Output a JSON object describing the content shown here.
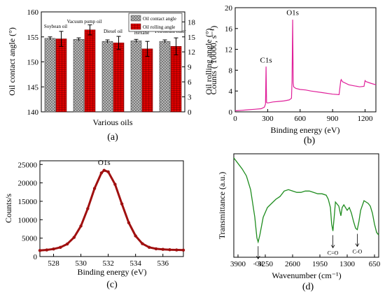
{
  "panels": {
    "a": {
      "label": "(a)"
    },
    "b": {
      "label": "(b)"
    },
    "c": {
      "label": "(c)"
    },
    "d": {
      "label": "(d)"
    }
  },
  "colors": {
    "contact": "#bfbfbf",
    "rolling": "#e00000",
    "survey": "#e0209a",
    "peak": "#a01010",
    "ftir": "#1e8c1e"
  },
  "chart_data": [
    {
      "id": "a",
      "type": "bar",
      "title": "",
      "xlabel": "Various oils",
      "ylabel": "Oil contact angle (°)",
      "y2label": "Oil rolling angle (°)",
      "ylim": [
        140,
        160
      ],
      "y2lim": [
        0,
        20
      ],
      "yticks": [
        140,
        145,
        150,
        155,
        160
      ],
      "y2ticks": [
        0,
        3,
        6,
        9,
        12,
        15,
        18
      ],
      "categories": [
        "Soybean oil",
        "Vacuum pump oil",
        "Diesel oil",
        "Hexane",
        "Petroleum ether"
      ],
      "legend": {
        "position": "top-right"
      },
      "series": [
        {
          "name": "Oil contact angle",
          "axis": "left",
          "values": [
            154.7,
            154.5,
            154.1,
            154.2,
            154.1
          ],
          "errors": [
            0.3,
            0.3,
            0.3,
            0.3,
            0.3
          ]
        },
        {
          "name": "Oil rolling angle",
          "axis": "right",
          "values": [
            14.6,
            16.4,
            13.8,
            12.6,
            13.1
          ],
          "errors": [
            1.5,
            1.0,
            1.3,
            1.5,
            1.7
          ]
        }
      ]
    },
    {
      "id": "b",
      "type": "line",
      "title": "",
      "xlabel": "Binding energy (eV)",
      "ylabel": "Counts ( 10000, s⁻¹)",
      "xlim": [
        0,
        1300
      ],
      "ylim": [
        0,
        20
      ],
      "xticks": [
        0,
        300,
        600,
        900,
        1200
      ],
      "yticks": [
        0,
        4,
        8,
        12,
        16,
        20
      ],
      "annotations": [
        {
          "text": "C1s",
          "x": 285,
          "y": 9.2
        },
        {
          "text": "O1s",
          "x": 531,
          "y": 18.3
        }
      ],
      "x": [
        0,
        60,
        120,
        180,
        240,
        270,
        280,
        285,
        290,
        300,
        350,
        400,
        450,
        500,
        520,
        525,
        531,
        536,
        540,
        560,
        600,
        650,
        700,
        800,
        900,
        960,
        975,
        980,
        990,
        1050,
        1100,
        1150,
        1190,
        1200,
        1210,
        1250,
        1300
      ],
      "y": [
        0.2,
        0.3,
        0.4,
        0.5,
        0.6,
        0.9,
        1.5,
        8.7,
        1.8,
        1.7,
        1.9,
        2.0,
        2.1,
        2.3,
        2.6,
        6.0,
        17.7,
        5.5,
        4.8,
        4.5,
        4.3,
        4.2,
        4.0,
        3.7,
        3.4,
        3.3,
        6.0,
        6.2,
        5.8,
        5.2,
        5.0,
        4.8,
        4.9,
        6.0,
        5.8,
        5.5,
        5.2
      ]
    },
    {
      "id": "c",
      "type": "scatter",
      "title": "",
      "xlabel": "Binding energy (eV)",
      "ylabel": "Counts/s",
      "xlim": [
        527,
        537.5
      ],
      "ylim": [
        0,
        26000
      ],
      "xticks": [
        528,
        530,
        532,
        534,
        536
      ],
      "yticks": [
        0,
        5000,
        10000,
        15000,
        20000,
        25000
      ],
      "annotations": [
        {
          "text": "O1s",
          "x": 531.7,
          "y": 24500
        }
      ],
      "x": [
        527.0,
        527.5,
        528.0,
        528.5,
        529.0,
        529.5,
        530.0,
        530.5,
        531.0,
        531.5,
        531.7,
        532.0,
        532.5,
        533.0,
        533.5,
        534.0,
        534.5,
        535.0,
        535.5,
        536.0,
        536.5,
        537.0,
        537.5
      ],
      "y": [
        1650,
        1800,
        2050,
        2500,
        3400,
        5200,
        8300,
        13000,
        18500,
        22700,
        23400,
        23000,
        19600,
        14300,
        9200,
        5600,
        3500,
        2500,
        2100,
        1950,
        1850,
        1800,
        1750
      ]
    },
    {
      "id": "d",
      "type": "line",
      "title": "",
      "xlabel": "Wavenumber (cm⁻¹)",
      "ylabel": "Transmittance (a.u.)",
      "xlim": [
        4000,
        550
      ],
      "xticks": [
        3900,
        3250,
        2600,
        1950,
        1300,
        650
      ],
      "yaxis_ticks": false,
      "annotations": [
        {
          "text": "-OH",
          "x": 3420
        },
        {
          "text": "C=O",
          "x": 1640
        },
        {
          "text": "C-O",
          "x": 1060
        }
      ],
      "x": [
        4000,
        3900,
        3800,
        3700,
        3600,
        3500,
        3450,
        3420,
        3380,
        3300,
        3200,
        3100,
        3000,
        2900,
        2800,
        2700,
        2600,
        2500,
        2400,
        2300,
        2200,
        2100,
        2000,
        1900,
        1800,
        1750,
        1700,
        1670,
        1640,
        1610,
        1580,
        1500,
        1450,
        1420,
        1380,
        1300,
        1250,
        1200,
        1150,
        1100,
        1060,
        1020,
        980,
        900,
        800,
        750,
        700,
        650,
        600,
        550
      ],
      "y": [
        0.98,
        0.94,
        0.9,
        0.85,
        0.75,
        0.55,
        0.4,
        0.37,
        0.42,
        0.55,
        0.62,
        0.65,
        0.68,
        0.7,
        0.74,
        0.75,
        0.74,
        0.73,
        0.73,
        0.74,
        0.74,
        0.73,
        0.72,
        0.72,
        0.71,
        0.68,
        0.62,
        0.5,
        0.45,
        0.55,
        0.66,
        0.63,
        0.56,
        0.62,
        0.64,
        0.6,
        0.62,
        0.58,
        0.52,
        0.47,
        0.46,
        0.52,
        0.6,
        0.67,
        0.65,
        0.63,
        0.58,
        0.5,
        0.44,
        0.42
      ]
    }
  ]
}
